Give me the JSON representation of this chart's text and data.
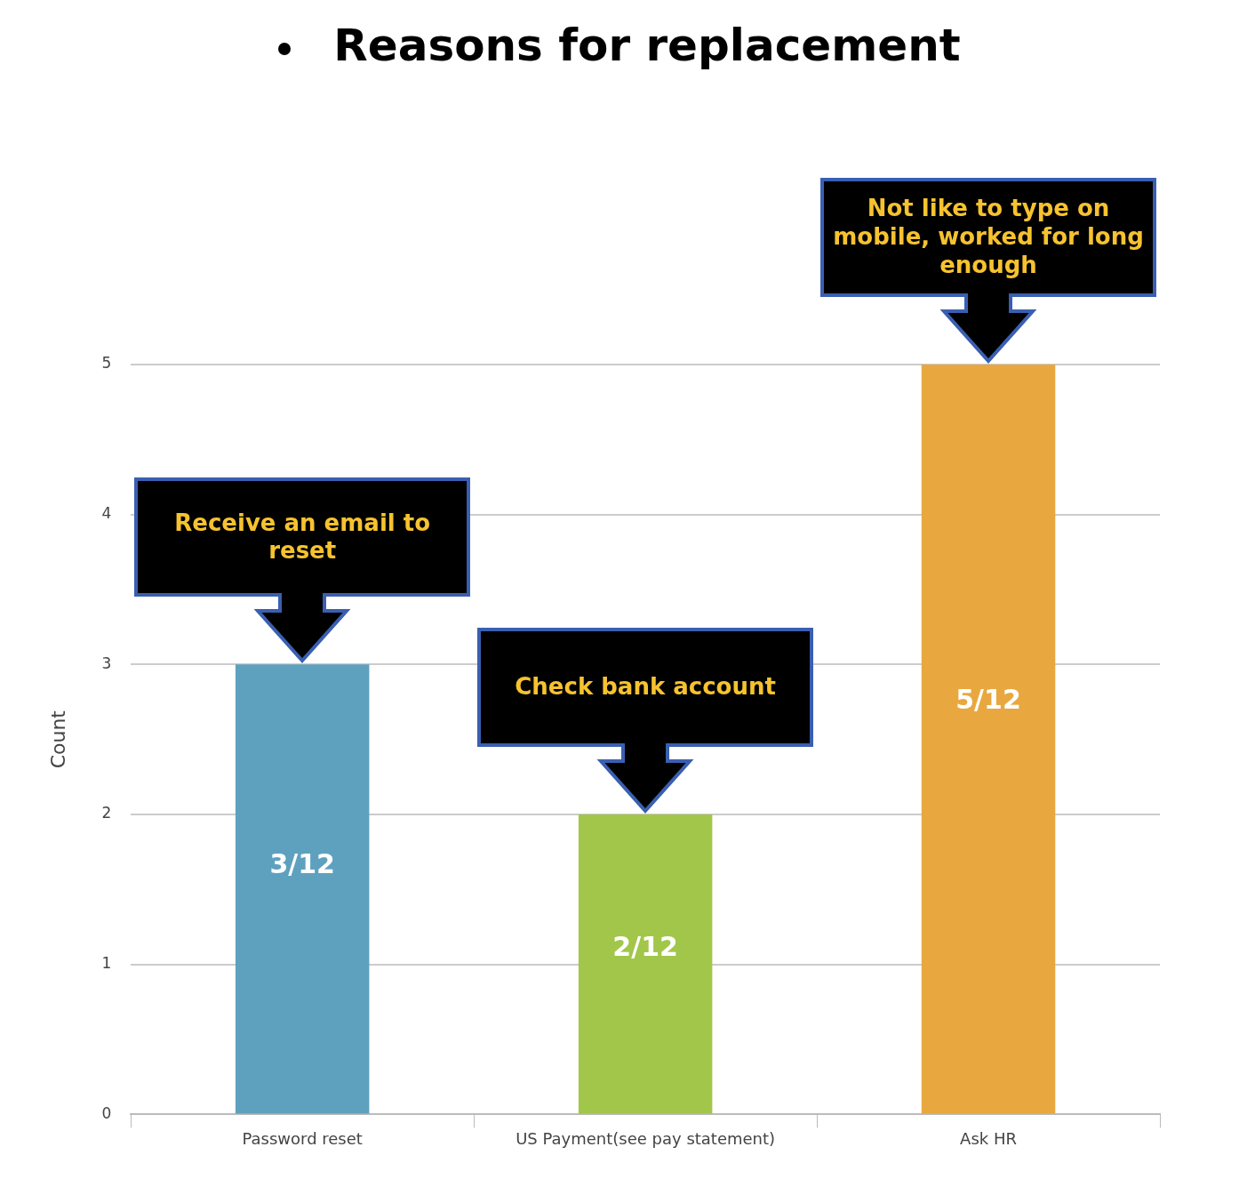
{
  "chart_data": {
    "type": "bar",
    "title": "Reasons for replacement",
    "ylabel": "Count",
    "categories": [
      "Password reset",
      "US Payment(see pay statement)",
      "Ask HR"
    ],
    "values": [
      3,
      2,
      5
    ],
    "colors": [
      "#5ea1bf",
      "#a2c64a",
      "#e8a83f"
    ],
    "ylim": [
      0,
      5
    ],
    "yticks": [
      0,
      1,
      2,
      3,
      4,
      5
    ],
    "grid": "y",
    "legend": false,
    "annotations": [
      "Receive an email to reset",
      "Check bank account",
      "Not like to type on mobile, worked for long enough",
      "3/12",
      "2/12",
      "5/12"
    ]
  }
}
